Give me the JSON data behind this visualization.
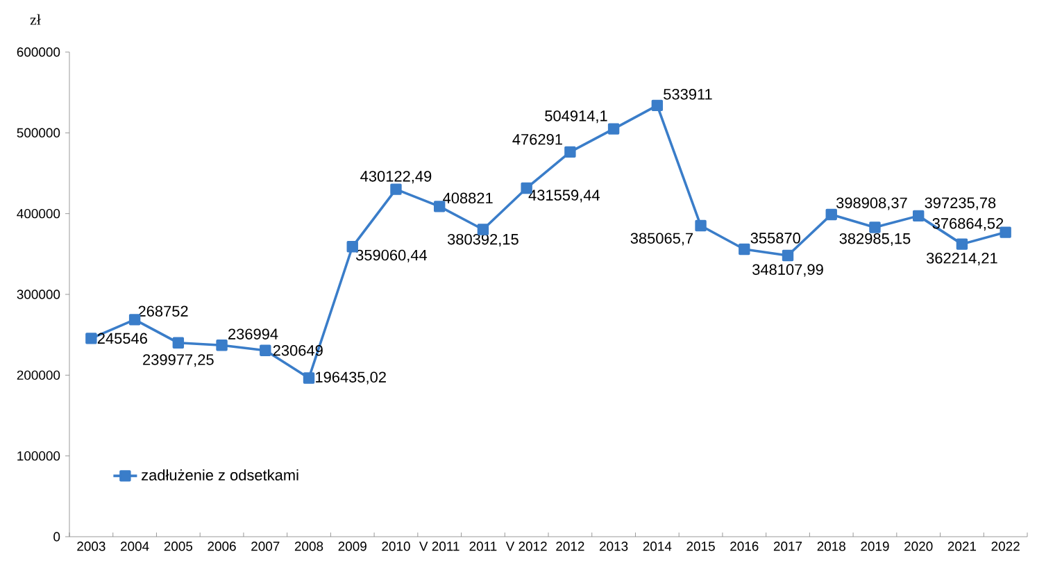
{
  "chart_data": {
    "type": "line",
    "ylabel": "zł",
    "categories": [
      "2003",
      "2004",
      "2005",
      "2006",
      "2007",
      "2008",
      "2009",
      "2010",
      "V 2011",
      "2011",
      "V 2012",
      "2012",
      "2013",
      "2014",
      "2015",
      "2016",
      "2017",
      "2018",
      "2019",
      "2020",
      "2021",
      "2022"
    ],
    "series": [
      {
        "name": "zadłużenie z odsetkami",
        "color": "#3a7dc9",
        "values": [
          245546,
          268752,
          239977.25,
          236994,
          230649,
          196435.02,
          359060.44,
          430122.49,
          408821,
          380392.15,
          431559.44,
          476291,
          504914.1,
          533911,
          385065.7,
          355870,
          348107.99,
          398908.37,
          382985.15,
          397235.78,
          362214.21,
          376864.52
        ],
        "value_labels": [
          "245546",
          "268752",
          "239977,25",
          "236994",
          "230649",
          "196435,02",
          "359060,44",
          "430122,49",
          "408821",
          "380392,15",
          "431559,44",
          "476291",
          "504914,1",
          "533911",
          "385065,7",
          "355870",
          "348107,99",
          "398908,37",
          "382985,15",
          "397235,78",
          "362214,21",
          "376864,52"
        ]
      }
    ],
    "ylim": [
      0,
      600000
    ],
    "yticks": [
      0,
      100000,
      200000,
      300000,
      400000,
      500000,
      600000
    ],
    "grid": false,
    "legend": "bottom left",
    "marker": "square",
    "line_style": "solid"
  }
}
